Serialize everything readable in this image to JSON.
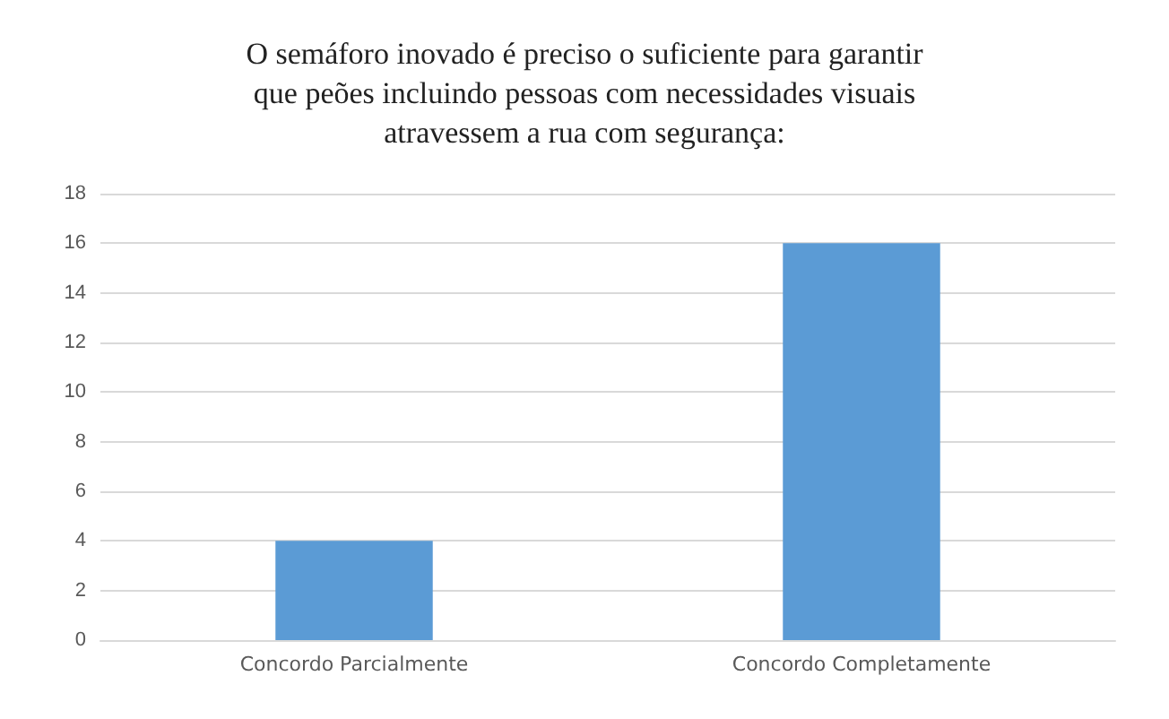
{
  "chart_data": {
    "type": "bar",
    "title": "O semáforo inovado é preciso o suficiente para garantir\nque peões incluindo pessoas com necessidades visuais\natravessem a rua com segurança:",
    "categories": [
      "Concordo Parcialmente",
      "Concordo Completamente"
    ],
    "values": [
      4,
      16
    ],
    "color": "#5b9bd5",
    "ylim": [
      0,
      18
    ],
    "yticks": [
      0,
      2,
      4,
      6,
      8,
      10,
      12,
      14,
      16,
      18
    ],
    "grid": "y"
  }
}
